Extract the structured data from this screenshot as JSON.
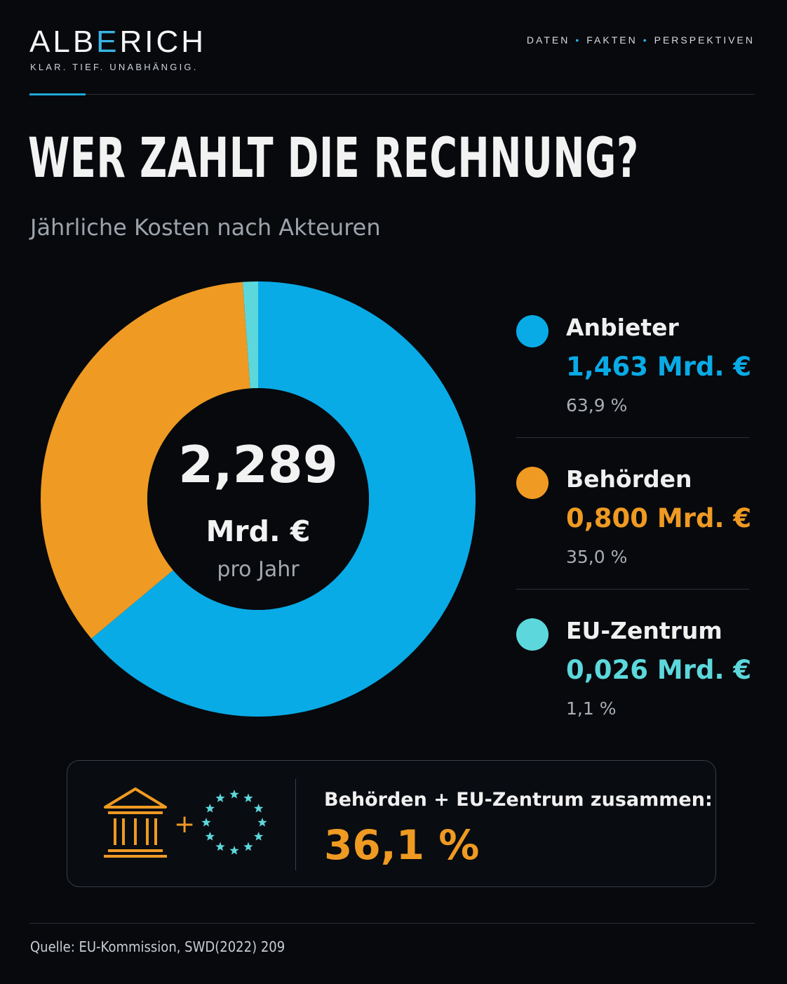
{
  "brand": {
    "name_part1": "ALB",
    "name_accent": "E",
    "name_part2": "RICH",
    "tagline": "KLAR. TIEF. UNABHÄNGIG."
  },
  "topnav": {
    "item1": "DATEN",
    "item2": "FAKTEN",
    "item3": "PERSPEKTIVEN",
    "separator": "•"
  },
  "header": {
    "title": "WER ZAHLT DIE RECHNUNG?",
    "subtitle": "Jährliche Kosten nach Akteuren"
  },
  "center": {
    "value": "2,289",
    "unit": "Mrd. €",
    "period": "pro Jahr"
  },
  "chart_data": {
    "type": "pie",
    "title": "WER ZAHLT DIE RECHNUNG?",
    "subtitle": "Jährliche Kosten nach Akteuren",
    "unit": "Mrd. €",
    "total": 2.289,
    "slices": [
      {
        "name": "Anbieter",
        "value": 1.463,
        "percent": 63.9,
        "color": "#09abe6"
      },
      {
        "name": "Behörden",
        "value": 0.8,
        "percent": 35.0,
        "color": "#ef9a22"
      },
      {
        "name": "EU-Zentrum",
        "value": 0.026,
        "percent": 1.1,
        "color": "#5cd8dc"
      }
    ],
    "legend_position": "right"
  },
  "legend": [
    {
      "name": "Anbieter",
      "amount": "1,463 Mrd. €",
      "pct": "63,9 %",
      "color": "#09abe6"
    },
    {
      "name": "Behörden",
      "amount": "0,800 Mrd. €",
      "pct": "35,0 %",
      "color": "#ef9a22"
    },
    {
      "name": "EU-Zentrum",
      "amount": "0,026 Mrd. €",
      "pct": "1,1 %",
      "color": "#5cd8dc"
    }
  ],
  "callout": {
    "text": "Behörden + EU-Zentrum zusammen:",
    "value": "36,1 %",
    "plus": "+",
    "icons": [
      "government-building-icon",
      "eu-stars-icon"
    ]
  },
  "footer": {
    "source": "Quelle: EU-Kommission, SWD(2022) 209"
  },
  "colors": {
    "background": "#07090d",
    "accent_blue": "#09abe6",
    "accent_orange": "#ef9a22",
    "accent_teal": "#5cd8dc"
  }
}
